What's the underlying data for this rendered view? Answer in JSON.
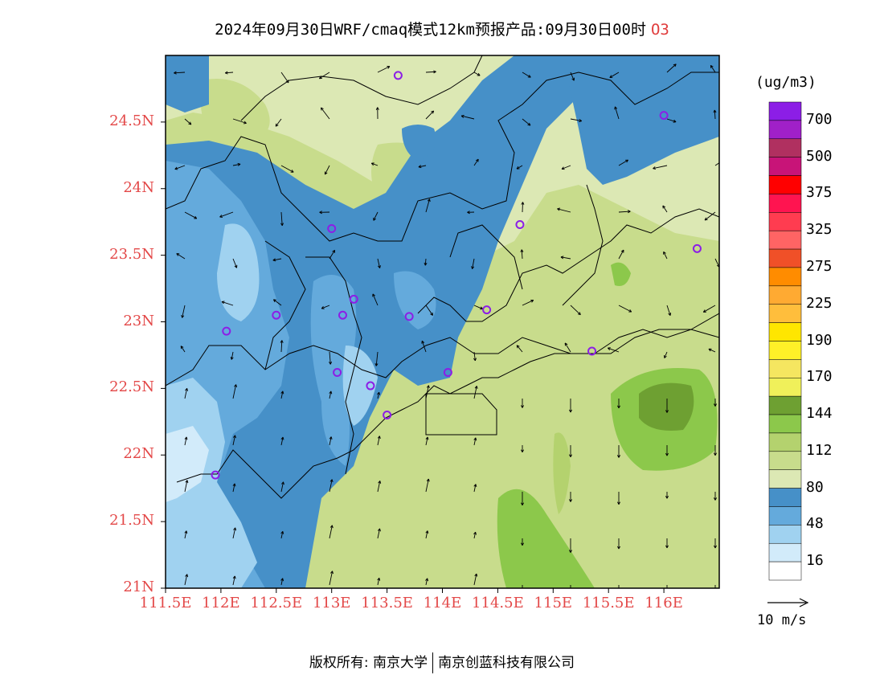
{
  "title": {
    "text": "2024年09月30日WRF/cmaq模式12km预报产品:09月30日00时",
    "species": "O3"
  },
  "map": {
    "lat_ticks": [
      "24.5N",
      "24N",
      "23.5N",
      "23N",
      "22.5N",
      "22N",
      "21.5N",
      "21N"
    ],
    "lon_ticks": [
      "111.5E",
      "112E",
      "112.5E",
      "113E",
      "113.5E",
      "114E",
      "114.5E",
      "115E",
      "115.5E",
      "116E"
    ],
    "lon_range": [
      111.5,
      116.5
    ],
    "lat_range": [
      21,
      25
    ],
    "stations": [
      {
        "lon": 113.6,
        "lat": 24.85
      },
      {
        "lon": 116.0,
        "lat": 24.55
      },
      {
        "lon": 113.0,
        "lat": 23.7
      },
      {
        "lon": 114.7,
        "lat": 23.73
      },
      {
        "lon": 116.3,
        "lat": 23.55
      },
      {
        "lon": 113.2,
        "lat": 23.17
      },
      {
        "lon": 112.5,
        "lat": 23.05
      },
      {
        "lon": 113.1,
        "lat": 23.05
      },
      {
        "lon": 113.7,
        "lat": 23.04
      },
      {
        "lon": 114.4,
        "lat": 23.09
      },
      {
        "lon": 112.05,
        "lat": 22.93
      },
      {
        "lon": 115.35,
        "lat": 22.78
      },
      {
        "lon": 113.05,
        "lat": 22.62
      },
      {
        "lon": 114.05,
        "lat": 22.62
      },
      {
        "lon": 113.35,
        "lat": 22.52
      },
      {
        "lon": 113.5,
        "lat": 22.3
      },
      {
        "lon": 111.95,
        "lat": 21.85
      }
    ]
  },
  "colorbar": {
    "unit": "(ug/m3)",
    "labels": [
      "700",
      "500",
      "375",
      "325",
      "275",
      "225",
      "190",
      "170",
      "144",
      "112",
      "80",
      "48",
      "16"
    ],
    "colors_top_to_bottom": [
      "#8c1ee6",
      "#a020c8",
      "#b03060",
      "#c81478",
      "#ff0000",
      "#ff1450",
      "#ff3c50",
      "#ff6464",
      "#f05028",
      "#ff8c00",
      "#ffaa32",
      "#ffbe3c",
      "#ffe600",
      "#fff028",
      "#f5e660",
      "#f0f05a",
      "#6ea032",
      "#8cc84b",
      "#b4d26e",
      "#c8dc8c",
      "#dce8b4",
      "#4690c8",
      "#64aadc",
      "#a0d2f0",
      "#d2ebfa",
      "#ffffff"
    ]
  },
  "wind_reference": {
    "label": "10 m/s"
  },
  "footer": {
    "left": "版权所有: 南京大学",
    "right": "南京创蓝科技有限公司"
  }
}
